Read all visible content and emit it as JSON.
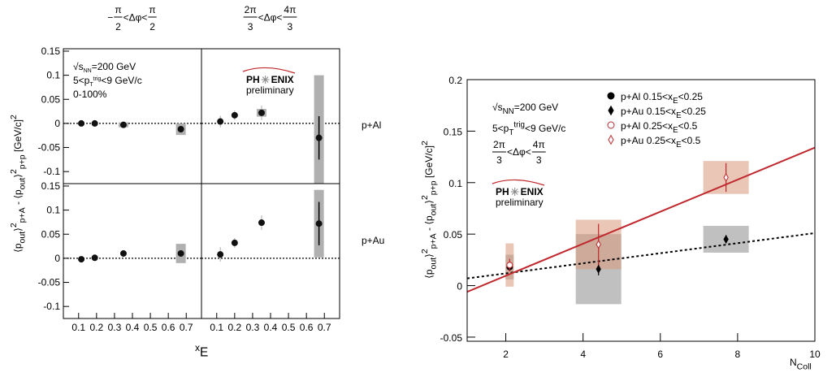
{
  "headers": [
    [
      "−",
      {
        "num": "π",
        "den": "2"
      },
      "<Δφ<",
      {
        "num": "π",
        "den": "2"
      }
    ],
    [
      {
        "num": "2π",
        "den": "3"
      },
      "<Δφ<",
      {
        "num": "4π",
        "den": "3"
      }
    ]
  ],
  "row_labels": [
    "p+Al",
    "p+Au"
  ],
  "x_label": [
    "x",
    {
      "t": "E",
      "pos": "sub"
    }
  ],
  "y_label": [
    "⟨p",
    {
      "t": "out",
      "pos": "sub"
    },
    "⟩",
    {
      "t": "2",
      "pos": "sup"
    },
    {
      "t": "p+A",
      "pos": "sub"
    },
    " - ⟨p",
    {
      "t": "out",
      "pos": "sub"
    },
    "⟩",
    {
      "t": "2",
      "pos": "sup"
    },
    {
      "t": "p+p",
      "pos": "sub"
    },
    " [GeV/c]",
    {
      "t": "2",
      "pos": "sup"
    }
  ],
  "chart_data": [
    {
      "type": "scatter",
      "x": [
        0.115,
        0.19,
        0.35,
        0.67
      ],
      "values": [
        0,
        0,
        -0.003,
        -0.012
      ],
      "errors": [
        0.003,
        0.003,
        0.006,
        0.008
      ],
      "sys": [
        null,
        null,
        0.005,
        0.012
      ],
      "xlim": [
        0.015,
        0.785
      ],
      "ylim": [
        -0.125,
        0.155
      ],
      "yticks": [
        -0.1,
        -0.05,
        0,
        0.05,
        0.1,
        0.15
      ],
      "notes": [
        [
          "√s",
          {
            "t": "NN",
            "pos": "sub"
          },
          "=200 GeV"
        ],
        [
          "5<p",
          {
            "t": "T",
            "pos": "sub"
          },
          {
            "t": "trig",
            "pos": "sup"
          },
          "<9 GeV/c"
        ],
        [
          "0-100%"
        ]
      ]
    },
    {
      "type": "scatter",
      "x": [
        0.12,
        0.2,
        0.35,
        0.67
      ],
      "values": [
        0.004,
        0.017,
        0.022,
        -0.03
      ],
      "errors": [
        0.012,
        0.01,
        0.015,
        0.045
      ],
      "sys": [
        null,
        null,
        0.008,
        0.13
      ],
      "xlim": [
        0.015,
        0.785
      ],
      "ylim": [
        -0.125,
        0.155
      ],
      "logo": {
        "left": "PH",
        "right": "ENIX",
        "sub": "preliminary"
      }
    },
    {
      "type": "scatter",
      "x": [
        0.115,
        0.19,
        0.35,
        0.67
      ],
      "values": [
        -0.002,
        0.001,
        0.01,
        0.01
      ],
      "errors": [
        0.003,
        0.003,
        0.004,
        0.008
      ],
      "sys": [
        null,
        null,
        null,
        0.02
      ],
      "xlim": [
        0.015,
        0.785
      ],
      "ylim": [
        -0.125,
        0.155
      ],
      "yticks": [
        -0.1,
        -0.05,
        0,
        0.05,
        0.1,
        0.15
      ],
      "xticks": [
        0.1,
        0.2,
        0.3,
        0.4,
        0.5,
        0.6,
        0.7
      ]
    },
    {
      "type": "scatter",
      "x": [
        0.12,
        0.2,
        0.35,
        0.67
      ],
      "values": [
        0.008,
        0.032,
        0.074,
        0.072
      ],
      "errors": [
        0.015,
        0.01,
        0.015,
        0.045
      ],
      "sys": [
        null,
        null,
        null,
        0.07
      ],
      "xlim": [
        0.015,
        0.785
      ],
      "ylim": [
        -0.125,
        0.155
      ],
      "xticks": [
        0.1,
        0.2,
        0.3,
        0.4,
        0.5,
        0.6,
        0.7
      ]
    },
    {
      "type": "scatter",
      "xlim": [
        1,
        10
      ],
      "ylim": [
        -0.054,
        0.2
      ],
      "xticks": [
        2,
        4,
        6,
        8,
        10
      ],
      "yticks": [
        -0.05,
        0,
        0.05,
        0.1,
        0.15,
        0.2
      ],
      "x_label": [
        "N",
        {
          "t": "Coll",
          "pos": "sub"
        }
      ],
      "y_label": [
        "⟨p",
        {
          "t": "out",
          "pos": "sub"
        },
        "⟩",
        {
          "t": "2",
          "pos": "sup"
        },
        {
          "t": "p+A",
          "pos": "sub"
        },
        " - ⟨p",
        {
          "t": "out",
          "pos": "sub"
        },
        "⟩",
        {
          "t": "2",
          "pos": "sup"
        },
        {
          "t": "p+p",
          "pos": "sub"
        },
        " [GeV/c]",
        {
          "t": "2",
          "pos": "sup"
        }
      ],
      "notes": [
        [
          "√s",
          {
            "t": "NN",
            "pos": "sub"
          },
          "=200 GeV"
        ],
        [
          "5<p",
          {
            "t": "T",
            "pos": "sub"
          },
          {
            "t": "trig",
            "pos": "sup"
          },
          "<9 GeV/c"
        ]
      ],
      "frac_note": [
        {
          "num": "2π",
          "den": "3"
        },
        "<Δφ<",
        {
          "num": "4π",
          "den": "3"
        }
      ],
      "logo": {
        "left": "PH",
        "right": "ENIX",
        "sub": "preliminary"
      },
      "series": [
        {
          "name": [
            "p+Al 0.15<x",
            {
              "t": "E",
              "pos": "sub"
            },
            "<0.25"
          ],
          "color": "#000000",
          "sys_color": "#8c8c8c",
          "marker": "circle",
          "filled": true,
          "x": [
            2.1
          ],
          "values": [
            0.018
          ],
          "errors": [
            0.004
          ],
          "sys": [
            0.012
          ]
        },
        {
          "name": [
            "p+Au 0.15<x",
            {
              "t": "E",
              "pos": "sub"
            },
            "<0.25"
          ],
          "color": "#000000",
          "sys_color": "#8c8c8c",
          "marker": "diamond",
          "filled": true,
          "x": [
            4.4,
            7.7
          ],
          "values": [
            0.016,
            0.045
          ],
          "errors": [
            0.006,
            0.004
          ],
          "sys": [
            0.034,
            0.013
          ]
        },
        {
          "name": [
            "p+Al 0.25<x",
            {
              "t": "E",
              "pos": "sub"
            },
            "<0.5"
          ],
          "color": "#c0282d",
          "sys_color": "#d9987a",
          "marker": "circle",
          "filled": false,
          "x": [
            2.1
          ],
          "values": [
            0.02
          ],
          "errors": [
            0.006
          ],
          "sys": [
            0.021
          ]
        },
        {
          "name": [
            "p+Au 0.25<x",
            {
              "t": "E",
              "pos": "sub"
            },
            "<0.5"
          ],
          "color": "#c0282d",
          "sys_color": "#d9987a",
          "marker": "diamond",
          "filled": false,
          "x": [
            4.4,
            7.7
          ],
          "values": [
            0.04,
            0.105
          ],
          "errors": [
            0.02,
            0.014
          ],
          "sys": [
            0.024,
            0.016
          ]
        }
      ],
      "fits": [
        {
          "color": "#000000",
          "dashed": true,
          "x": [
            1,
            10
          ],
          "values": [
            0.007,
            0.051
          ]
        },
        {
          "color": "#c0282d",
          "dashed": false,
          "x": [
            1,
            10
          ],
          "values": [
            -0.006,
            0.134
          ]
        }
      ]
    }
  ]
}
